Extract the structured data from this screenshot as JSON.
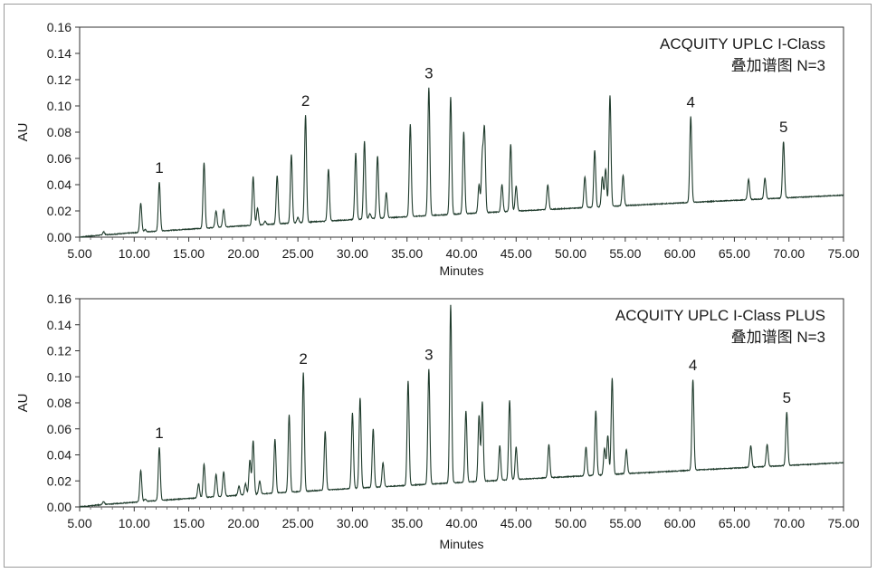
{
  "charts": [
    {
      "type": "line",
      "title_lines": [
        "ACQUITY UPLC I-Class",
        "叠加谱图 N=3"
      ],
      "xlabel": "Minutes",
      "ylabel": "AU",
      "xlim": [
        5.0,
        75.0
      ],
      "ylim": [
        0.0,
        0.16
      ],
      "x_ticks": [
        "5.00",
        "10.00",
        "15.00",
        "20.00",
        "25.00",
        "30.00",
        "35.00",
        "40.00",
        "45.00",
        "50.00",
        "55.00",
        "60.00",
        "65.00",
        "70.00",
        "75.00"
      ],
      "y_ticks": [
        "0.00",
        "0.02",
        "0.04",
        "0.06",
        "0.08",
        "0.10",
        "0.12",
        "0.14",
        "0.16"
      ],
      "annotations": [
        {
          "label": "1",
          "x": 12.3,
          "y": 0.042
        },
        {
          "label": "2",
          "x": 25.7,
          "y": 0.093
        },
        {
          "label": "3",
          "x": 37.0,
          "y": 0.114
        },
        {
          "label": "4",
          "x": 61.0,
          "y": 0.092
        },
        {
          "label": "5",
          "x": 69.5,
          "y": 0.073
        }
      ],
      "baseline": {
        "start": 0.0,
        "end": 0.032
      },
      "peaks": [
        [
          7.2,
          0.004
        ],
        [
          10.6,
          0.026
        ],
        [
          11.0,
          0.006
        ],
        [
          12.3,
          0.042
        ],
        [
          13.2,
          0.004
        ],
        [
          14.0,
          0.005
        ],
        [
          15.2,
          0.004
        ],
        [
          15.8,
          0.005
        ],
        [
          16.4,
          0.057
        ],
        [
          17.5,
          0.02
        ],
        [
          18.2,
          0.021
        ],
        [
          19.3,
          0.006
        ],
        [
          20.0,
          0.006
        ],
        [
          20.9,
          0.046
        ],
        [
          21.3,
          0.022
        ],
        [
          22.0,
          0.012
        ],
        [
          23.1,
          0.047
        ],
        [
          24.4,
          0.063
        ],
        [
          25.0,
          0.015
        ],
        [
          25.7,
          0.093
        ],
        [
          27.8,
          0.052
        ],
        [
          29.0,
          0.01
        ],
        [
          30.3,
          0.064
        ],
        [
          31.1,
          0.073
        ],
        [
          31.6,
          0.018
        ],
        [
          32.3,
          0.062
        ],
        [
          33.1,
          0.034
        ],
        [
          35.3,
          0.086
        ],
        [
          37.0,
          0.114
        ],
        [
          39.0,
          0.107
        ],
        [
          40.2,
          0.08
        ],
        [
          41.6,
          0.04
        ],
        [
          41.9,
          0.061
        ],
        [
          42.1,
          0.081
        ],
        [
          43.7,
          0.04
        ],
        [
          44.5,
          0.071
        ],
        [
          45.0,
          0.039
        ],
        [
          47.9,
          0.04
        ],
        [
          51.3,
          0.046
        ],
        [
          52.2,
          0.066
        ],
        [
          52.9,
          0.046
        ],
        [
          53.2,
          0.052
        ],
        [
          53.6,
          0.108
        ],
        [
          54.8,
          0.047
        ],
        [
          61.0,
          0.092
        ],
        [
          66.3,
          0.044
        ],
        [
          67.8,
          0.045
        ],
        [
          69.5,
          0.073
        ]
      ]
    },
    {
      "type": "line",
      "title_lines": [
        "ACQUITY UPLC I-Class PLUS",
        "叠加谱图 N=3"
      ],
      "xlabel": "Minutes",
      "ylabel": "AU",
      "xlim": [
        5.0,
        75.0
      ],
      "ylim": [
        0.0,
        0.16
      ],
      "x_ticks": [
        "5.00",
        "10.00",
        "15.00",
        "20.00",
        "25.00",
        "30.00",
        "35.00",
        "40.00",
        "45.00",
        "50.00",
        "55.00",
        "60.00",
        "65.00",
        "70.00",
        "75.00"
      ],
      "y_ticks": [
        "0.00",
        "0.02",
        "0.04",
        "0.06",
        "0.08",
        "0.10",
        "0.12",
        "0.14",
        "0.16"
      ],
      "annotations": [
        {
          "label": "1",
          "x": 12.3,
          "y": 0.046
        },
        {
          "label": "2",
          "x": 25.5,
          "y": 0.103
        },
        {
          "label": "3",
          "x": 37.0,
          "y": 0.106
        },
        {
          "label": "4",
          "x": 61.2,
          "y": 0.098
        },
        {
          "label": "5",
          "x": 69.8,
          "y": 0.073
        }
      ],
      "baseline": {
        "start": 0.0,
        "end": 0.034
      },
      "peaks": [
        [
          7.2,
          0.004
        ],
        [
          10.6,
          0.028
        ],
        [
          11.0,
          0.006
        ],
        [
          12.3,
          0.046
        ],
        [
          13.2,
          0.005
        ],
        [
          14.0,
          0.005
        ],
        [
          15.2,
          0.005
        ],
        [
          15.9,
          0.018
        ],
        [
          16.4,
          0.033
        ],
        [
          17.5,
          0.025
        ],
        [
          18.2,
          0.027
        ],
        [
          19.6,
          0.016
        ],
        [
          20.2,
          0.018
        ],
        [
          20.6,
          0.036
        ],
        [
          20.9,
          0.051
        ],
        [
          21.5,
          0.02
        ],
        [
          22.9,
          0.052
        ],
        [
          24.2,
          0.071
        ],
        [
          25.5,
          0.103
        ],
        [
          27.5,
          0.058
        ],
        [
          28.1,
          0.012
        ],
        [
          30.0,
          0.072
        ],
        [
          30.7,
          0.084
        ],
        [
          31.9,
          0.06
        ],
        [
          32.8,
          0.034
        ],
        [
          35.1,
          0.097
        ],
        [
          37.0,
          0.106
        ],
        [
          39.0,
          0.155
        ],
        [
          40.4,
          0.074
        ],
        [
          41.6,
          0.07
        ],
        [
          41.9,
          0.081
        ],
        [
          43.5,
          0.047
        ],
        [
          44.4,
          0.082
        ],
        [
          45.0,
          0.046
        ],
        [
          48.0,
          0.048
        ],
        [
          51.4,
          0.046
        ],
        [
          52.3,
          0.074
        ],
        [
          53.1,
          0.045
        ],
        [
          53.4,
          0.055
        ],
        [
          53.8,
          0.099
        ],
        [
          55.1,
          0.044
        ],
        [
          61.2,
          0.098
        ],
        [
          66.5,
          0.047
        ],
        [
          68.0,
          0.048
        ],
        [
          69.8,
          0.073
        ]
      ]
    }
  ]
}
